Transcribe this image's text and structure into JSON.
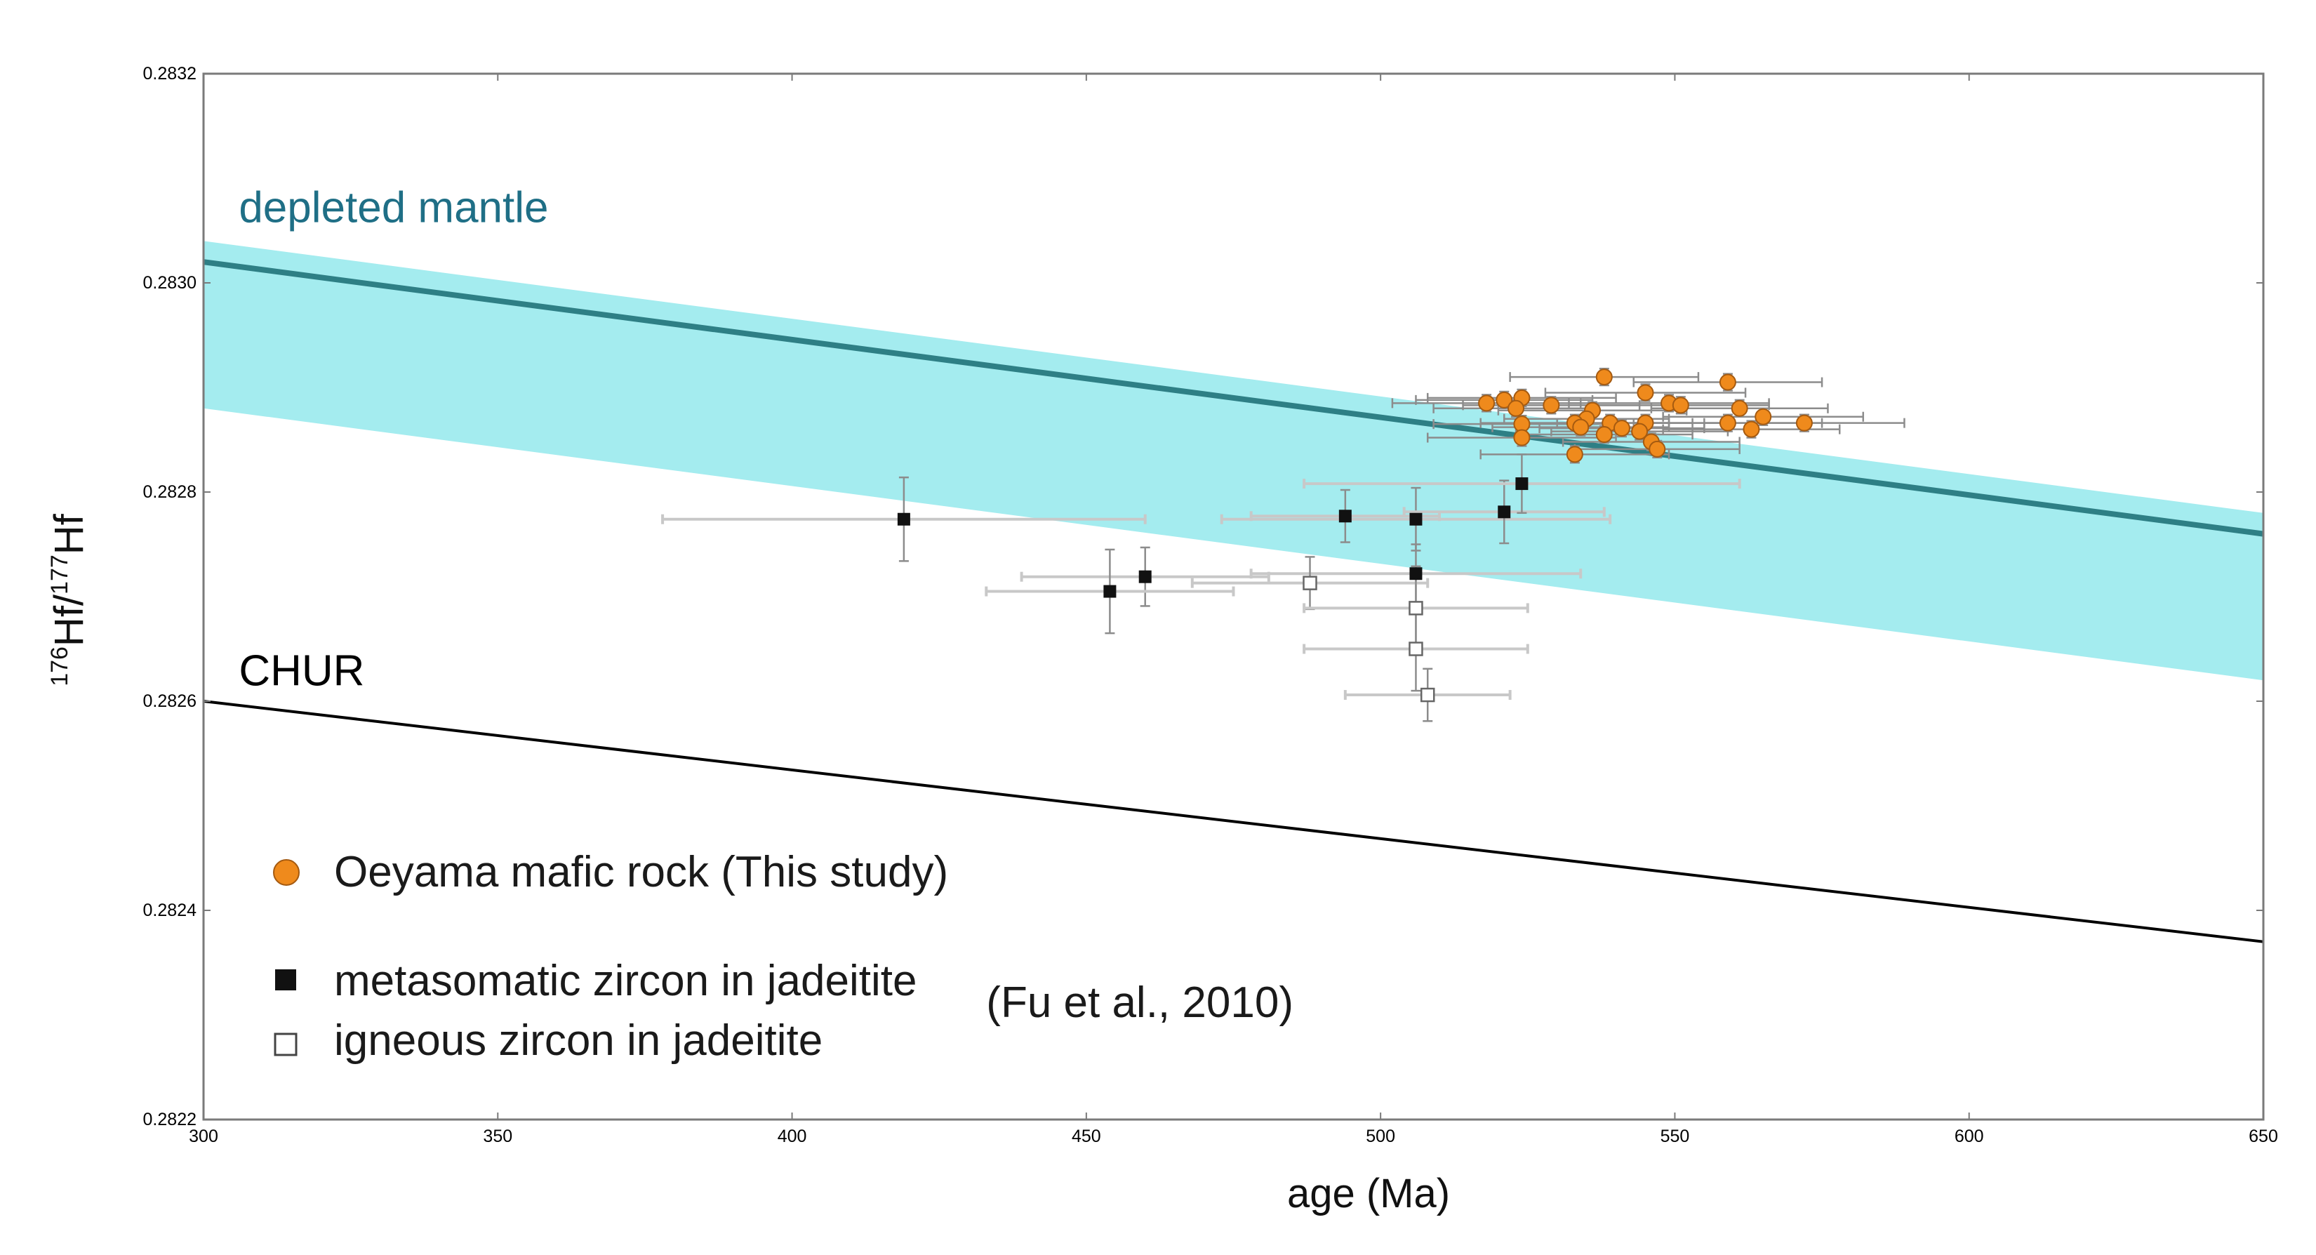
{
  "chart_data": {
    "type": "scatter",
    "xlabel": "age (Ma)",
    "ylabel_parts": {
      "sup1": "176",
      "base1": "Hf/",
      "sup2": "177",
      "base2": "Hf"
    },
    "xlim": [
      300,
      650
    ],
    "ylim": [
      0.2822,
      0.2832
    ],
    "x_ticks": [
      300,
      350,
      400,
      450,
      500,
      550,
      600,
      650
    ],
    "x_tick_labels": [
      "300",
      "350",
      "400",
      "450",
      "500",
      "550",
      "600",
      "650"
    ],
    "y_ticks": [
      0.2822,
      0.2824,
      0.2826,
      0.2828,
      0.283,
      0.2832
    ],
    "y_tick_labels": [
      "0.2822",
      "0.2824",
      "0.2826",
      "0.2828",
      "0.2830",
      "0.2832"
    ],
    "grid": false,
    "colors": {
      "band": "#a4ecef",
      "dm_line": "#2e7f85",
      "chur_line": "#000000",
      "orange": "#ef8a1c",
      "orange_edge": "#a55a10",
      "black_square": "#111111",
      "open_square": "#ffffff",
      "errorbar": "#8c8c8c",
      "errorbar_light": "#c8c8c8",
      "dm_label": "#1f6f86"
    },
    "band": {
      "upper": [
        [
          300,
          0.28304
        ],
        [
          650,
          0.28278
        ]
      ],
      "lower": [
        [
          300,
          0.28288
        ],
        [
          650,
          0.28262
        ]
      ]
    },
    "lines": [
      {
        "name": "depleted mantle",
        "points": [
          [
            300,
            0.28302
          ],
          [
            650,
            0.28276
          ]
        ]
      },
      {
        "name": "CHUR",
        "points": [
          [
            300,
            0.2826
          ],
          [
            650,
            0.28237
          ]
        ]
      }
    ],
    "annotations": {
      "depleted_mantle": {
        "text": "depleted mantle",
        "x": 306,
        "y": 0.283058
      },
      "chur": {
        "text": "CHUR",
        "x": 306,
        "y": 0.282615
      },
      "fu_citation": {
        "text": "(Fu et al., 2010)",
        "x": 433,
        "y": 0.282298
      }
    },
    "series": [
      {
        "name": "Oeyama mafic rock (This study)",
        "marker": "circle",
        "points": [
          [
            538,
            0.28291,
            16
          ],
          [
            559,
            0.282905,
            16
          ],
          [
            545,
            0.282895,
            17
          ],
          [
            524,
            0.28289,
            16
          ],
          [
            521,
            0.282888,
            15
          ],
          [
            518,
            0.282885,
            16
          ],
          [
            523,
            0.28288,
            14
          ],
          [
            529,
            0.282883,
            15
          ],
          [
            549,
            0.282885,
            17
          ],
          [
            551,
            0.282883,
            15
          ],
          [
            561,
            0.28288,
            15
          ],
          [
            536,
            0.282878,
            16
          ],
          [
            535,
            0.28287,
            14
          ],
          [
            565,
            0.282872,
            17
          ],
          [
            524,
            0.282865,
            15
          ],
          [
            533,
            0.282866,
            16
          ],
          [
            539,
            0.282866,
            14
          ],
          [
            545,
            0.282866,
            15
          ],
          [
            559,
            0.282866,
            16
          ],
          [
            572,
            0.282866,
            17
          ],
          [
            534,
            0.282862,
            15
          ],
          [
            541,
            0.282861,
            14
          ],
          [
            538,
            0.282855,
            15
          ],
          [
            544,
            0.282858,
            15
          ],
          [
            563,
            0.28286,
            15
          ],
          [
            524,
            0.282852,
            16
          ],
          [
            546,
            0.282848,
            15
          ],
          [
            547,
            0.282841,
            14
          ],
          [
            533,
            0.282836,
            16
          ]
        ]
      },
      {
        "name": "metasomatic zircon in jadeitite",
        "marker": "square-filled",
        "points": [
          [
            419,
            0.282774,
            41,
            4e-05
          ],
          [
            494,
            0.282777,
            16,
            2.5e-05
          ],
          [
            506,
            0.282774,
            33,
            3e-05
          ],
          [
            521,
            0.282781,
            17,
            3e-05
          ],
          [
            524,
            0.282808,
            37,
            2.8e-05
          ],
          [
            506,
            0.282722,
            28,
            2.8e-05
          ],
          [
            460,
            0.282719,
            21,
            2.8e-05
          ],
          [
            454,
            0.282705,
            21,
            4e-05
          ]
        ]
      },
      {
        "name": "igneous zircon in jadeitite",
        "marker": "square-open",
        "points": [
          [
            488,
            0.282713,
            20,
            2.5e-05
          ],
          [
            506,
            0.282689,
            19,
            4e-05
          ],
          [
            506,
            0.28265,
            19,
            4e-05
          ],
          [
            508,
            0.282606,
            14,
            2.5e-05
          ]
        ]
      }
    ],
    "legend": {
      "placement": "bottom-left",
      "entries": [
        "Oeyama mafic rock (This study)",
        "metasomatic zircon in jadeitite",
        "igneous zircon in jadeitite"
      ]
    }
  }
}
